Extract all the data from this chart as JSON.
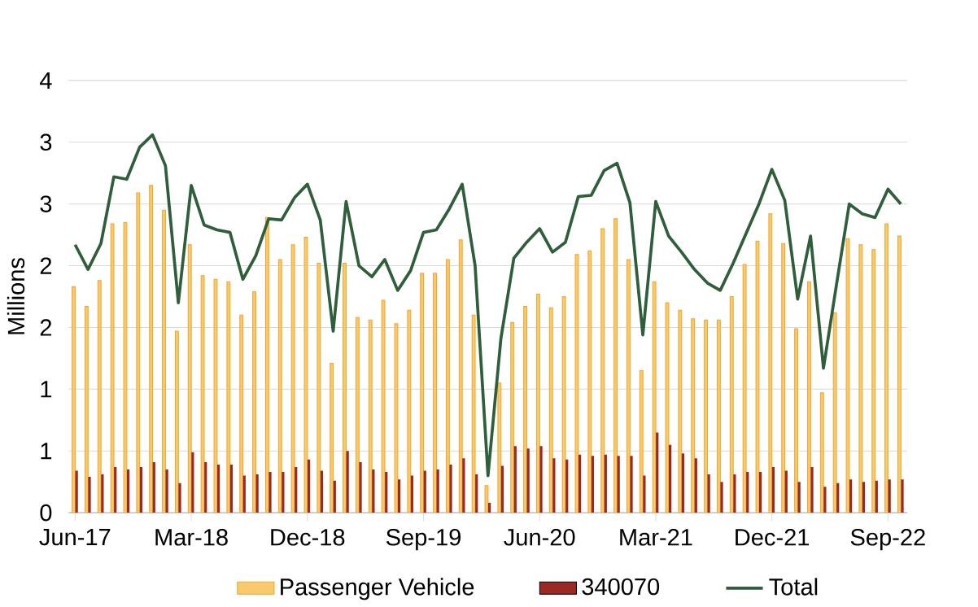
{
  "chart_data": {
    "type": "bar",
    "ylabel": "Millions",
    "categories": [
      "Jun-17",
      null,
      null,
      null,
      null,
      null,
      null,
      null,
      null,
      "Mar-18",
      null,
      null,
      null,
      null,
      null,
      null,
      null,
      null,
      "Dec-18",
      null,
      null,
      null,
      null,
      null,
      null,
      null,
      null,
      "Sep-19",
      null,
      null,
      null,
      null,
      null,
      null,
      null,
      null,
      "Jun-20",
      null,
      null,
      null,
      null,
      null,
      null,
      null,
      null,
      "Mar-21",
      null,
      null,
      null,
      null,
      null,
      null,
      null,
      null,
      "Dec-21",
      null,
      null,
      null,
      null,
      null,
      null,
      null,
      null,
      "Sep-22",
      null
    ],
    "series": [
      {
        "name": "Passenger Vehicle",
        "color": "#f9c96e",
        "values": [
          1.83,
          1.67,
          1.88,
          2.34,
          2.35,
          2.59,
          2.65,
          2.45,
          1.47,
          2.17,
          1.92,
          1.89,
          1.87,
          1.6,
          1.79,
          2.39,
          2.05,
          2.17,
          2.23,
          2.02,
          1.21,
          2.02,
          1.58,
          1.56,
          1.72,
          1.53,
          1.64,
          1.94,
          1.94,
          2.05,
          2.21,
          1.6,
          0.22,
          1.05,
          1.54,
          1.67,
          1.77,
          1.66,
          1.75,
          2.09,
          2.12,
          2.3,
          2.38,
          2.05,
          1.15,
          1.87,
          1.7,
          1.64,
          1.57,
          1.56,
          1.56,
          1.75,
          2.01,
          2.2,
          2.42,
          2.18,
          1.49,
          1.87,
          0.97,
          1.62,
          2.22,
          2.17,
          2.13,
          2.34,
          2.24
        ]
      },
      {
        "name": "340070",
        "color": "#9b2a24",
        "values": [
          0.34,
          0.29,
          0.31,
          0.37,
          0.35,
          0.37,
          0.41,
          0.35,
          0.24,
          0.49,
          0.41,
          0.39,
          0.39,
          0.3,
          0.31,
          0.33,
          0.33,
          0.37,
          0.43,
          0.34,
          0.26,
          0.5,
          0.41,
          0.35,
          0.33,
          0.27,
          0.3,
          0.34,
          0.35,
          0.39,
          0.44,
          0.31,
          0.08,
          0.38,
          0.54,
          0.52,
          0.54,
          0.44,
          0.43,
          0.47,
          0.46,
          0.47,
          0.46,
          0.46,
          0.3,
          0.65,
          0.55,
          0.48,
          0.44,
          0.31,
          0.25,
          0.31,
          0.33,
          0.33,
          0.37,
          0.34,
          0.25,
          0.37,
          0.21,
          0.24,
          0.27,
          0.25,
          0.26,
          0.27,
          0.27
        ]
      },
      {
        "name": "Total",
        "type": "line",
        "color": "#2e5e3a",
        "values": [
          2.17,
          1.97,
          2.18,
          2.72,
          2.7,
          2.96,
          3.06,
          2.81,
          1.7,
          2.65,
          2.33,
          2.29,
          2.27,
          1.89,
          2.08,
          2.38,
          2.37,
          2.55,
          2.66,
          2.37,
          1.47,
          2.52,
          2.0,
          1.91,
          2.05,
          1.8,
          1.96,
          2.27,
          2.29,
          2.46,
          2.66,
          2.0,
          0.3,
          1.41,
          2.06,
          2.19,
          2.3,
          2.11,
          2.19,
          2.56,
          2.57,
          2.77,
          2.83,
          2.51,
          1.44,
          2.52,
          2.24,
          2.11,
          1.97,
          1.86,
          1.8,
          2.02,
          2.26,
          2.5,
          2.78,
          2.53,
          1.73,
          2.24,
          1.17,
          1.84,
          2.5,
          2.42,
          2.39,
          2.62,
          2.5
        ]
      }
    ],
    "ylim": [
      0,
      3.5
    ],
    "yticks": [
      0,
      {
        "value": 0.5,
        "label": "1"
      },
      1,
      {
        "value": 1.5,
        "label": "2"
      },
      2,
      {
        "value": 2.5,
        "label": "3"
      },
      3,
      {
        "value": 3.5,
        "label": "4"
      }
    ],
    "grid": "y",
    "legend": "bottom",
    "marker": "none"
  }
}
